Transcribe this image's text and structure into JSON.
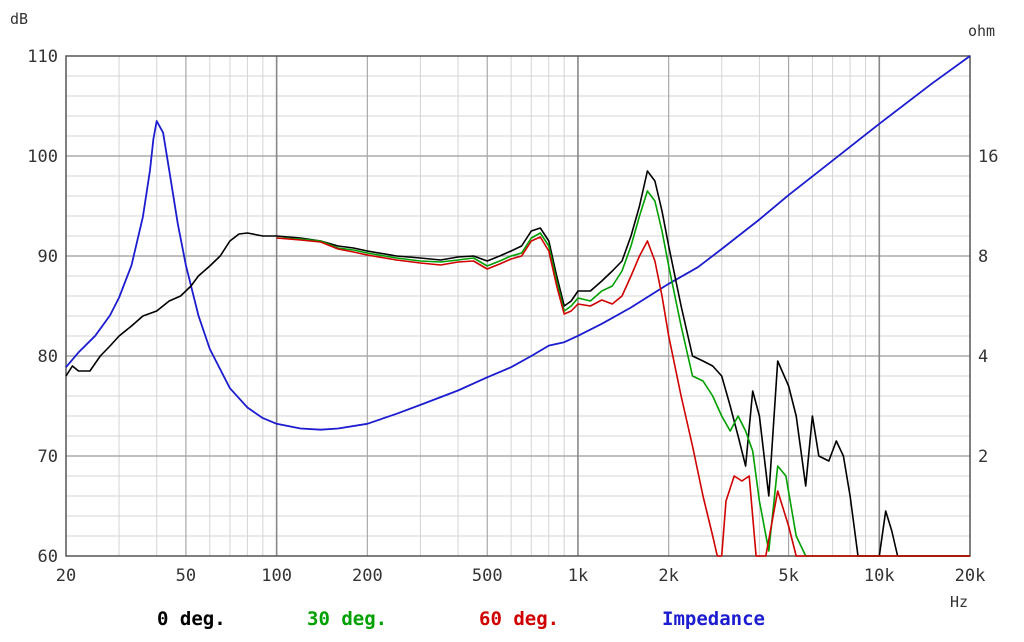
{
  "chart_data": {
    "type": "line",
    "x_scale": "log",
    "grid": true,
    "left_axis": {
      "unit_label": "dB",
      "range": [
        60,
        110
      ],
      "ticks": [
        "110",
        "100",
        "90",
        "80",
        "70",
        "60"
      ],
      "tick_values": [
        110,
        100,
        90,
        80,
        70,
        60
      ]
    },
    "right_axis": {
      "unit_label": "ohm",
      "ticks": [
        "16",
        "8",
        "4",
        "2"
      ],
      "tick_values": [
        16,
        8,
        4,
        2
      ]
    },
    "x_axis": {
      "unit_label": "Hz",
      "range": [
        20,
        20000
      ],
      "ticks": [
        "20",
        "50",
        "100",
        "200",
        "500",
        "1k",
        "2k",
        "5k",
        "10k",
        "20k"
      ],
      "tick_values": [
        20,
        50,
        100,
        200,
        500,
        1000,
        2000,
        5000,
        10000,
        20000
      ]
    },
    "series": [
      {
        "name": "0 deg.",
        "color": "#000000",
        "axis": "left",
        "points": [
          [
            20,
            78
          ],
          [
            21,
            79
          ],
          [
            22,
            78.5
          ],
          [
            24,
            78.5
          ],
          [
            26,
            80
          ],
          [
            28,
            81
          ],
          [
            30,
            82
          ],
          [
            33,
            83
          ],
          [
            36,
            84
          ],
          [
            40,
            84.5
          ],
          [
            44,
            85.5
          ],
          [
            48,
            86
          ],
          [
            52,
            87
          ],
          [
            55,
            88
          ],
          [
            60,
            89
          ],
          [
            65,
            90
          ],
          [
            70,
            91.5
          ],
          [
            75,
            92.2
          ],
          [
            80,
            92.3
          ],
          [
            90,
            92
          ],
          [
            100,
            92
          ],
          [
            120,
            91.8
          ],
          [
            140,
            91.5
          ],
          [
            160,
            91
          ],
          [
            180,
            90.8
          ],
          [
            200,
            90.5
          ],
          [
            250,
            90
          ],
          [
            300,
            89.8
          ],
          [
            350,
            89.6
          ],
          [
            400,
            89.9
          ],
          [
            450,
            90
          ],
          [
            500,
            89.5
          ],
          [
            550,
            90
          ],
          [
            600,
            90.5
          ],
          [
            650,
            91
          ],
          [
            700,
            92.5
          ],
          [
            750,
            92.8
          ],
          [
            800,
            91.5
          ],
          [
            850,
            88
          ],
          [
            900,
            85
          ],
          [
            950,
            85.5
          ],
          [
            1000,
            86.5
          ],
          [
            1100,
            86.5
          ],
          [
            1200,
            87.5
          ],
          [
            1300,
            88.5
          ],
          [
            1400,
            89.5
          ],
          [
            1500,
            92
          ],
          [
            1600,
            95
          ],
          [
            1700,
            98.5
          ],
          [
            1800,
            97.5
          ],
          [
            1900,
            94.5
          ],
          [
            2000,
            91
          ],
          [
            2200,
            85
          ],
          [
            2400,
            80
          ],
          [
            2600,
            79.5
          ],
          [
            2800,
            79
          ],
          [
            3000,
            78
          ],
          [
            3200,
            75
          ],
          [
            3400,
            72
          ],
          [
            3600,
            69
          ],
          [
            3800,
            76.5
          ],
          [
            4000,
            74
          ],
          [
            4300,
            66
          ],
          [
            4600,
            79.5
          ],
          [
            5000,
            77
          ],
          [
            5300,
            74
          ],
          [
            5700,
            67
          ],
          [
            6000,
            74
          ],
          [
            6300,
            70
          ],
          [
            6800,
            69.5
          ],
          [
            7200,
            71.5
          ],
          [
            7600,
            70
          ],
          [
            8000,
            66
          ],
          [
            8500,
            60
          ],
          [
            9000,
            60
          ],
          [
            10000,
            60
          ],
          [
            10500,
            64.5
          ],
          [
            11000,
            62.5
          ],
          [
            11500,
            60
          ],
          [
            20000,
            60
          ]
        ]
      },
      {
        "name": "30 deg.",
        "color": "#00a000",
        "axis": "left",
        "points": [
          [
            100,
            91.8
          ],
          [
            120,
            91.7
          ],
          [
            140,
            91.5
          ],
          [
            160,
            90.8
          ],
          [
            180,
            90.6
          ],
          [
            200,
            90.3
          ],
          [
            250,
            89.8
          ],
          [
            300,
            89.5
          ],
          [
            350,
            89.4
          ],
          [
            400,
            89.6
          ],
          [
            450,
            89.8
          ],
          [
            500,
            89
          ],
          [
            550,
            89.5
          ],
          [
            600,
            90
          ],
          [
            650,
            90.3
          ],
          [
            700,
            91.8
          ],
          [
            750,
            92.3
          ],
          [
            800,
            91
          ],
          [
            850,
            87.5
          ],
          [
            900,
            84.5
          ],
          [
            950,
            85
          ],
          [
            1000,
            85.8
          ],
          [
            1100,
            85.5
          ],
          [
            1200,
            86.5
          ],
          [
            1300,
            87
          ],
          [
            1400,
            88.5
          ],
          [
            1500,
            91
          ],
          [
            1600,
            94
          ],
          [
            1700,
            96.5
          ],
          [
            1800,
            95.5
          ],
          [
            1900,
            92.5
          ],
          [
            2000,
            89
          ],
          [
            2200,
            83
          ],
          [
            2400,
            78
          ],
          [
            2600,
            77.5
          ],
          [
            2800,
            76
          ],
          [
            3000,
            74
          ],
          [
            3200,
            72.5
          ],
          [
            3400,
            74
          ],
          [
            3600,
            72.5
          ],
          [
            3800,
            70.5
          ],
          [
            4000,
            65.5
          ],
          [
            4300,
            60.5
          ],
          [
            4600,
            69
          ],
          [
            4900,
            68
          ],
          [
            5300,
            62
          ],
          [
            5700,
            60
          ],
          [
            6000,
            60
          ],
          [
            20000,
            60
          ]
        ]
      },
      {
        "name": "60 deg.",
        "color": "#d00000",
        "axis": "left",
        "points": [
          [
            100,
            91.8
          ],
          [
            120,
            91.6
          ],
          [
            140,
            91.4
          ],
          [
            160,
            90.7
          ],
          [
            180,
            90.4
          ],
          [
            200,
            90.1
          ],
          [
            250,
            89.6
          ],
          [
            300,
            89.3
          ],
          [
            350,
            89.1
          ],
          [
            400,
            89.4
          ],
          [
            450,
            89.5
          ],
          [
            500,
            88.7
          ],
          [
            550,
            89.2
          ],
          [
            600,
            89.7
          ],
          [
            650,
            90
          ],
          [
            700,
            91.5
          ],
          [
            750,
            91.9
          ],
          [
            800,
            90.5
          ],
          [
            850,
            87
          ],
          [
            900,
            84.2
          ],
          [
            950,
            84.5
          ],
          [
            1000,
            85.2
          ],
          [
            1100,
            85
          ],
          [
            1200,
            85.6
          ],
          [
            1300,
            85.2
          ],
          [
            1400,
            86
          ],
          [
            1500,
            88
          ],
          [
            1600,
            90
          ],
          [
            1700,
            91.5
          ],
          [
            1800,
            89.5
          ],
          [
            1900,
            86
          ],
          [
            2000,
            82
          ],
          [
            2200,
            76
          ],
          [
            2400,
            71
          ],
          [
            2600,
            66
          ],
          [
            2800,
            62
          ],
          [
            2900,
            60
          ],
          [
            3000,
            60
          ],
          [
            3100,
            65.5
          ],
          [
            3300,
            68
          ],
          [
            3500,
            67.5
          ],
          [
            3700,
            68
          ],
          [
            3900,
            60
          ],
          [
            4200,
            60
          ],
          [
            4600,
            66.5
          ],
          [
            5000,
            63
          ],
          [
            5300,
            60
          ],
          [
            20000,
            60
          ]
        ]
      },
      {
        "name": "Impedance",
        "color": "#1c1cd0",
        "axis": "right",
        "points": [
          [
            20,
            3.7
          ],
          [
            22,
            4.1
          ],
          [
            25,
            4.6
          ],
          [
            28,
            5.3
          ],
          [
            30,
            6
          ],
          [
            33,
            7.5
          ],
          [
            36,
            10.5
          ],
          [
            38,
            14.5
          ],
          [
            39,
            18
          ],
          [
            40,
            20.4
          ],
          [
            42,
            18.8
          ],
          [
            44,
            14.5
          ],
          [
            47,
            10
          ],
          [
            50,
            7.5
          ],
          [
            55,
            5.3
          ],
          [
            60,
            4.2
          ],
          [
            70,
            3.2
          ],
          [
            80,
            2.8
          ],
          [
            90,
            2.6
          ],
          [
            100,
            2.5
          ],
          [
            120,
            2.42
          ],
          [
            140,
            2.4
          ],
          [
            160,
            2.42
          ],
          [
            200,
            2.5
          ],
          [
            250,
            2.68
          ],
          [
            300,
            2.85
          ],
          [
            400,
            3.15
          ],
          [
            500,
            3.45
          ],
          [
            600,
            3.7
          ],
          [
            700,
            4
          ],
          [
            800,
            4.3
          ],
          [
            900,
            4.4
          ],
          [
            1000,
            4.6
          ],
          [
            1200,
            5
          ],
          [
            1500,
            5.6
          ],
          [
            2000,
            6.6
          ],
          [
            2500,
            7.4
          ],
          [
            3000,
            8.4
          ],
          [
            4000,
            10.3
          ],
          [
            5000,
            12.2
          ],
          [
            7000,
            15.5
          ],
          [
            10000,
            20
          ],
          [
            15000,
            26.5
          ],
          [
            20000,
            34
          ]
        ]
      }
    ]
  }
}
